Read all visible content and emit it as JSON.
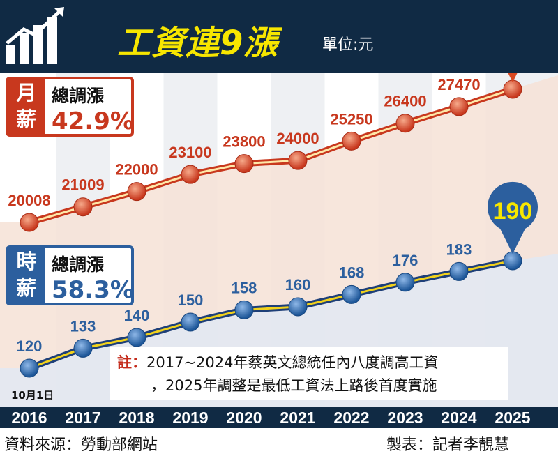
{
  "header": {
    "title": "工資連9漲",
    "unit": "單位:元"
  },
  "monthly_badge": {
    "tag": "月薪",
    "label": "總調漲",
    "value": "42.9%"
  },
  "hourly_badge": {
    "tag": "時薪",
    "label": "總調漲",
    "value": "58.3%"
  },
  "note": {
    "mark": "註：",
    "line1": "2017~2024年蔡英文總統任內八度調高工資",
    "line2": "，2025年調整是最低工資法上路後首度實施"
  },
  "first_point_note": "10月1日",
  "footer": {
    "source": "資料來源：勞動部網站",
    "credit": "製表：記者李靚慧"
  },
  "colors": {
    "navy": "#102a44",
    "title_yellow": "#f7e600",
    "monthly_red": "#c8381e",
    "hourly_blue": "#2c5f9e"
  },
  "chart_data": {
    "type": "line",
    "x": [
      "2016",
      "2017",
      "2018",
      "2019",
      "2020",
      "2021",
      "2022",
      "2023",
      "2024",
      "2025"
    ],
    "series": [
      {
        "name": "月薪",
        "values": [
          20008,
          21009,
          22000,
          23100,
          23800,
          24000,
          25250,
          26400,
          27470,
          28590
        ]
      },
      {
        "name": "時薪",
        "values": [
          120,
          133,
          140,
          150,
          158,
          160,
          168,
          176,
          183,
          190
        ]
      }
    ],
    "title": "工資連9漲",
    "unit": "單位:元",
    "grid": false,
    "legend": "left"
  }
}
